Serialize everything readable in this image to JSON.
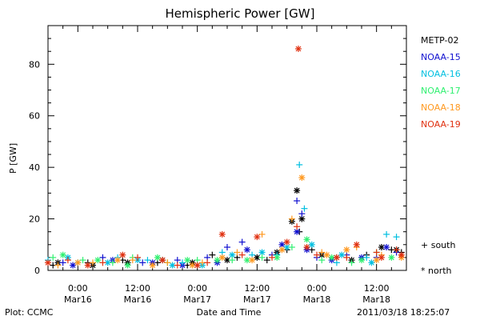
{
  "chart_data": {
    "type": "scatter",
    "title": "Hemispheric Power [GW]",
    "ylabel": "P [GW]",
    "xlabel": "Date and Time",
    "ylim": [
      0,
      95
    ],
    "y_ticks": [
      0,
      20,
      40,
      60,
      80
    ],
    "x_axis": {
      "start": "2011-03-15 18:00",
      "end": "2011-03-18 18:00",
      "ticks": [
        {
          "time": "0:00",
          "date": "Mar16",
          "hours": 6
        },
        {
          "time": "12:00",
          "date": "Mar16",
          "hours": 18
        },
        {
          "time": "0:00",
          "date": "Mar17",
          "hours": 30
        },
        {
          "time": "12:00",
          "date": "Mar17",
          "hours": 42
        },
        {
          "time": "0:00",
          "date": "Mar18",
          "hours": 54
        },
        {
          "time": "12:00",
          "date": "Mar18",
          "hours": 66
        }
      ]
    },
    "series": [
      {
        "name": "METP-02",
        "color": "#000000",
        "south": [
          [
            1,
            2
          ],
          [
            8,
            3
          ],
          [
            15,
            4
          ],
          [
            22,
            3
          ],
          [
            28,
            2
          ],
          [
            33,
            6
          ],
          [
            38,
            5
          ],
          [
            44,
            4
          ],
          [
            48,
            8
          ],
          [
            50.5,
            15
          ],
          [
            53,
            8
          ],
          [
            58,
            5
          ],
          [
            64,
            6
          ],
          [
            69,
            8
          ],
          [
            71,
            7
          ]
        ],
        "north": [
          [
            2,
            3
          ],
          [
            9,
            2
          ],
          [
            16,
            3
          ],
          [
            23,
            4
          ],
          [
            29,
            3
          ],
          [
            36,
            4
          ],
          [
            42,
            5
          ],
          [
            46,
            7
          ],
          [
            49,
            19
          ],
          [
            50,
            31
          ],
          [
            51,
            20
          ],
          [
            55,
            6
          ],
          [
            61,
            4
          ],
          [
            67,
            9
          ],
          [
            70,
            8
          ]
        ]
      },
      {
        "name": "NOAA-15",
        "color": "#1010d0",
        "south": [
          [
            3,
            3
          ],
          [
            11,
            5
          ],
          [
            19,
            3
          ],
          [
            26,
            4
          ],
          [
            32,
            5
          ],
          [
            36,
            9
          ],
          [
            39,
            11
          ],
          [
            45,
            6
          ],
          [
            50,
            27
          ],
          [
            51,
            22
          ],
          [
            54,
            5
          ],
          [
            60,
            6
          ],
          [
            66,
            5
          ],
          [
            70,
            7
          ]
        ],
        "north": [
          [
            5,
            2
          ],
          [
            13,
            4
          ],
          [
            21,
            3
          ],
          [
            27,
            2
          ],
          [
            34,
            3
          ],
          [
            40,
            8
          ],
          [
            47,
            10
          ],
          [
            50,
            15
          ],
          [
            52,
            8
          ],
          [
            57,
            4
          ],
          [
            63,
            5
          ],
          [
            68,
            9
          ]
        ]
      },
      {
        "name": "NOAA-16",
        "color": "#00bfe0",
        "south": [
          [
            0,
            4
          ],
          [
            6,
            3
          ],
          [
            14,
            5
          ],
          [
            20,
            4
          ],
          [
            27,
            3
          ],
          [
            35,
            7
          ],
          [
            41,
            6
          ],
          [
            46,
            6
          ],
          [
            50.5,
            41
          ],
          [
            51.5,
            24
          ],
          [
            58,
            3
          ],
          [
            64,
            5
          ],
          [
            68,
            14
          ],
          [
            70,
            13
          ]
        ],
        "north": [
          [
            4,
            5
          ],
          [
            12,
            3
          ],
          [
            18,
            4
          ],
          [
            25,
            2
          ],
          [
            31,
            2
          ],
          [
            37,
            6
          ],
          [
            43,
            7
          ],
          [
            48,
            9
          ],
          [
            53,
            10
          ],
          [
            59,
            6
          ],
          [
            65,
            3
          ]
        ]
      },
      {
        "name": "NOAA-17",
        "color": "#30f070",
        "south": [
          [
            1,
            5
          ],
          [
            7,
            4
          ],
          [
            13,
            3
          ],
          [
            17,
            5
          ],
          [
            24,
            3
          ],
          [
            30,
            4
          ],
          [
            37,
            4
          ],
          [
            43,
            5
          ],
          [
            49,
            9
          ],
          [
            55,
            4
          ],
          [
            61,
            3
          ],
          [
            66,
            7
          ]
        ],
        "north": [
          [
            3,
            6
          ],
          [
            10,
            4
          ],
          [
            16,
            2
          ],
          [
            22,
            5
          ],
          [
            28,
            4
          ],
          [
            34,
            4
          ],
          [
            40,
            4
          ],
          [
            46,
            5
          ],
          [
            52,
            12
          ],
          [
            57,
            5
          ],
          [
            63,
            4
          ],
          [
            69,
            5
          ]
        ]
      },
      {
        "name": "NOAA-18",
        "color": "#ff9920",
        "south": [
          [
            2,
            2
          ],
          [
            9,
            3
          ],
          [
            17,
            4
          ],
          [
            24,
            3
          ],
          [
            31,
            3
          ],
          [
            38,
            7
          ],
          [
            43,
            14
          ],
          [
            49,
            20
          ],
          [
            55,
            7
          ],
          [
            62,
            9
          ],
          [
            67,
            6
          ]
        ],
        "north": [
          [
            6,
            3
          ],
          [
            14,
            4
          ],
          [
            21,
            2
          ],
          [
            29,
            2
          ],
          [
            35,
            5
          ],
          [
            41,
            4
          ],
          [
            47,
            8
          ],
          [
            51,
            36
          ],
          [
            56,
            6
          ],
          [
            60,
            8
          ],
          [
            66,
            4
          ],
          [
            71,
            5
          ]
        ]
      },
      {
        "name": "NOAA-19",
        "color": "#e03010",
        "south": [
          [
            4,
            4
          ],
          [
            11,
            3
          ],
          [
            18,
            5
          ],
          [
            26,
            2
          ],
          [
            32,
            3
          ],
          [
            39,
            6
          ],
          [
            45,
            5
          ],
          [
            50,
            17
          ],
          [
            54,
            6
          ],
          [
            60,
            5
          ],
          [
            66,
            7
          ],
          [
            70,
            8
          ]
        ],
        "north": [
          [
            0,
            3
          ],
          [
            8,
            2
          ],
          [
            15,
            6
          ],
          [
            23,
            4
          ],
          [
            30,
            2
          ],
          [
            35,
            14
          ],
          [
            42,
            13
          ],
          [
            48,
            11
          ],
          [
            50.3,
            86
          ],
          [
            52,
            9
          ],
          [
            58,
            5
          ],
          [
            62,
            10
          ],
          [
            67,
            5
          ],
          [
            71,
            6
          ]
        ]
      }
    ],
    "markers": {
      "south": "+",
      "north": "*"
    },
    "legend_position": "right"
  },
  "labels": {
    "south_legend": "+ south",
    "north_legend": "* north",
    "plot_source": "Plot: CCMC",
    "timestamp": "2011/03/18 18:25:07"
  }
}
